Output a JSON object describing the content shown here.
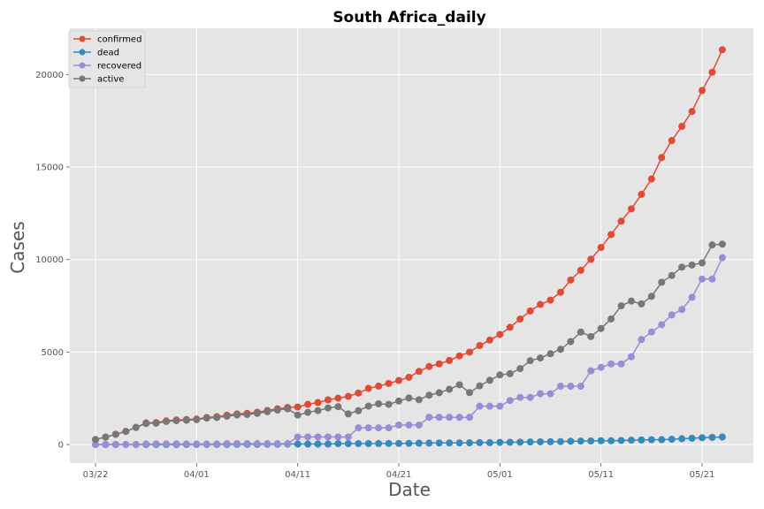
{
  "chart_data": {
    "type": "line",
    "title": "South Africa_daily",
    "xlabel": "Date",
    "ylabel": "Cases",
    "x_start": "2020-03-22",
    "x": [
      "03/22",
      "03/23",
      "03/24",
      "03/25",
      "03/26",
      "03/27",
      "03/28",
      "03/29",
      "03/30",
      "03/31",
      "04/01",
      "04/02",
      "04/03",
      "04/04",
      "04/05",
      "04/06",
      "04/07",
      "04/08",
      "04/09",
      "04/10",
      "04/11",
      "04/12",
      "04/13",
      "04/14",
      "04/15",
      "04/16",
      "04/17",
      "04/18",
      "04/19",
      "04/20",
      "04/21",
      "04/22",
      "04/23",
      "04/24",
      "04/25",
      "04/26",
      "04/27",
      "04/28",
      "04/29",
      "04/30",
      "05/01",
      "05/02",
      "05/03",
      "05/04",
      "05/05",
      "05/06",
      "05/07",
      "05/08",
      "05/09",
      "05/10",
      "05/11",
      "05/12",
      "05/13",
      "05/14",
      "05/15",
      "05/16",
      "05/17",
      "05/18",
      "05/19",
      "05/20",
      "05/21",
      "05/22",
      "05/23"
    ],
    "x_ticks": [
      "03/22",
      "04/01",
      "04/11",
      "04/21",
      "05/01",
      "05/11",
      "05/21"
    ],
    "y_ticks": [
      0,
      5000,
      10000,
      15000,
      20000
    ],
    "ylim": [
      -1000,
      22500
    ],
    "grid": true,
    "legend_position": "top-left",
    "series": [
      {
        "name": "confirmed",
        "color": "#E24A33",
        "values": [
          274,
          402,
          554,
          709,
          927,
          1170,
          1187,
          1280,
          1326,
          1353,
          1380,
          1462,
          1505,
          1585,
          1655,
          1686,
          1749,
          1845,
          1934,
          2003,
          2028,
          2173,
          2272,
          2415,
          2506,
          2605,
          2783,
          3034,
          3158,
          3300,
          3465,
          3635,
          3953,
          4220,
          4361,
          4546,
          4793,
          4996,
          5350,
          5647,
          5951,
          6336,
          6783,
          7220,
          7572,
          7808,
          8232,
          8895,
          9420,
          10015,
          10652,
          11350,
          12074,
          12739,
          13524,
          14355,
          15515,
          16433,
          17200,
          18003,
          19137,
          20125,
          21343
        ]
      },
      {
        "name": "dead",
        "color": "#348ABD",
        "values": [
          0,
          0,
          0,
          0,
          0,
          1,
          1,
          2,
          3,
          5,
          5,
          5,
          9,
          9,
          11,
          12,
          13,
          18,
          18,
          24,
          25,
          25,
          27,
          27,
          48,
          48,
          50,
          52,
          54,
          58,
          58,
          65,
          75,
          79,
          86,
          87,
          90,
          93,
          103,
          103,
          116,
          123,
          131,
          138,
          148,
          153,
          161,
          178,
          186,
          194,
          206,
          206,
          219,
          238,
          247,
          261,
          264,
          286,
          312,
          339,
          369,
          386,
          407
        ]
      },
      {
        "name": "recovered",
        "color": "#988ED5",
        "values": [
          0,
          0,
          0,
          0,
          0,
          31,
          31,
          31,
          31,
          31,
          31,
          31,
          31,
          45,
          45,
          50,
          50,
          50,
          50,
          50,
          410,
          410,
          410,
          410,
          410,
          410,
          903,
          903,
          903,
          903,
          1055,
          1055,
          1055,
          1473,
          1473,
          1473,
          1473,
          1473,
          2073,
          2073,
          2073,
          2382,
          2549,
          2549,
          2746,
          2746,
          3153,
          3153,
          3153,
          3983,
          4173,
          4357,
          4357,
          4745,
          5676,
          6083,
          6478,
          7006,
          7298,
          7960,
          8950,
          8950,
          10104
        ]
      },
      {
        "name": "active",
        "color": "#777777",
        "values": [
          274,
          402,
          554,
          709,
          927,
          1138,
          1155,
          1247,
          1292,
          1317,
          1344,
          1426,
          1465,
          1531,
          1599,
          1624,
          1686,
          1777,
          1866,
          1929,
          1593,
          1738,
          1835,
          1978,
          2048,
          1657,
          1830,
          2079,
          2201,
          2173,
          2352,
          2515,
          2423,
          2668,
          2802,
          2986,
          3230,
          2808,
          3174,
          3471,
          3762,
          3831,
          4103,
          4533,
          4678,
          4909,
          5148,
          5564,
          6081,
          5838,
          6273,
          6787,
          7498,
          7756,
          7601,
          8011,
          8773,
          9141,
          9590,
          9704,
          9818,
          10789,
          10832
        ]
      }
    ]
  }
}
